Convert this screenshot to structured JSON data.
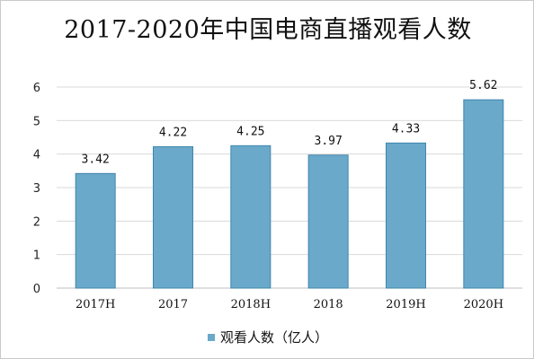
{
  "colors": {
    "bar": "#6aa9c9",
    "bar_edge": "#3f86ad",
    "grid": "#d9d9d9",
    "axis": "#bfbfbf"
  },
  "chart_data": {
    "type": "bar",
    "title": "2017-2020年中国电商直播观看人数",
    "categories": [
      "2017H",
      "2017",
      "2018H",
      "2018",
      "2019H",
      "2020H"
    ],
    "series": [
      {
        "name": "观看人数（亿人）",
        "values": [
          3.42,
          4.22,
          4.25,
          3.97,
          4.33,
          5.62
        ]
      }
    ],
    "data_labels": [
      "3.42",
      "4.22",
      "4.25",
      "3.97",
      "4.33",
      "5.62"
    ],
    "yticks": [
      "0",
      "1",
      "2",
      "3",
      "4",
      "5",
      "6"
    ],
    "ylim": [
      0,
      6
    ],
    "xlabel": "",
    "ylabel": "",
    "grid": true,
    "legend_position": "bottom"
  }
}
